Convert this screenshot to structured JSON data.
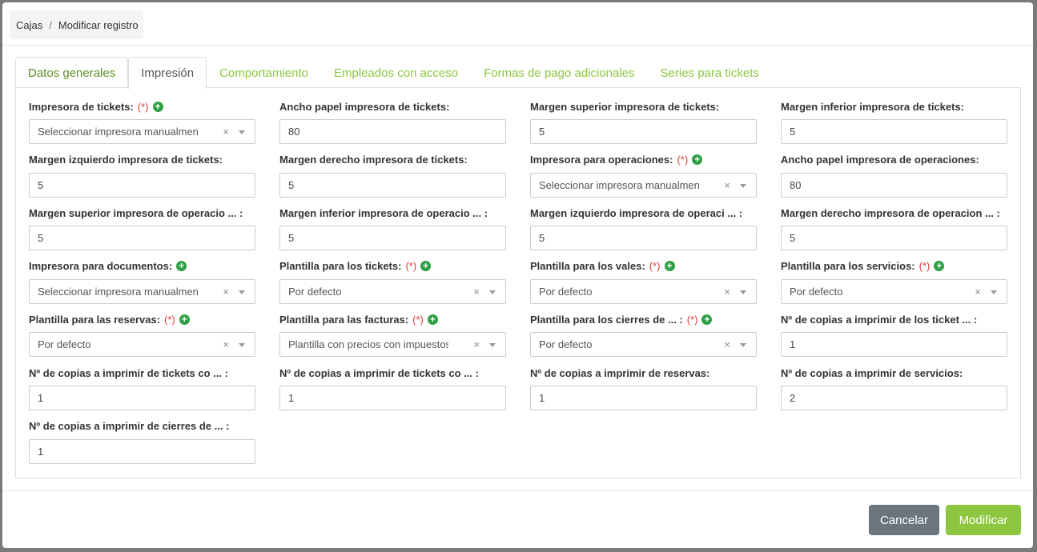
{
  "breadcrumb": [
    "Cajas",
    "Modificar registro"
  ],
  "tabs": [
    "Datos generales",
    "Impresión",
    "Comportamiento",
    "Empleados con acceso",
    "Formas de pago adicionales",
    "Series para tickets"
  ],
  "active_tab": "Impresión",
  "required_mark": "(*)",
  "fields": [
    {
      "label": "Impresora de tickets:",
      "required": true,
      "add": true,
      "type": "select",
      "value": "Seleccionar impresora manualmente"
    },
    {
      "label": "Ancho papel impresora de tickets:",
      "type": "text",
      "value": "80"
    },
    {
      "label": "Margen superior impresora de tickets:",
      "type": "text",
      "value": "5"
    },
    {
      "label": "Margen inferior impresora de tickets:",
      "type": "text",
      "value": "5"
    },
    {
      "label": "Margen izquierdo impresora de tickets:",
      "type": "text",
      "value": "5"
    },
    {
      "label": "Margen derecho impresora de tickets:",
      "type": "text",
      "value": "5"
    },
    {
      "label": "Impresora para operaciones:",
      "required": true,
      "add": true,
      "type": "select",
      "value": "Seleccionar impresora manualmente"
    },
    {
      "label": "Ancho papel impresora de operaciones:",
      "type": "text",
      "value": "80"
    },
    {
      "label": "Margen superior impresora de operacio ... :",
      "type": "text",
      "value": "5"
    },
    {
      "label": "Margen inferior impresora de operacio ... :",
      "type": "text",
      "value": "5"
    },
    {
      "label": "Margen izquierdo impresora de operaci ... :",
      "type": "text",
      "value": "5"
    },
    {
      "label": "Margen derecho impresora de operacion ... :",
      "type": "text",
      "value": "5"
    },
    {
      "label": "Impresora para documentos:",
      "add": true,
      "type": "select",
      "value": "Seleccionar impresora manualmente"
    },
    {
      "label": "Plantilla para los tickets:",
      "required": true,
      "add": true,
      "type": "select",
      "value": "Por defecto"
    },
    {
      "label": "Plantilla para los vales:",
      "required": true,
      "add": true,
      "type": "select",
      "value": "Por defecto"
    },
    {
      "label": "Plantilla para los servicios:",
      "required": true,
      "add": true,
      "type": "select",
      "value": "Por defecto"
    },
    {
      "label": "Plantilla para las reservas:",
      "required": true,
      "add": true,
      "type": "select",
      "value": "Por defecto"
    },
    {
      "label": "Plantilla para las facturas:",
      "required": true,
      "add": true,
      "type": "select",
      "value": "Plantilla con precios con impuestos"
    },
    {
      "label": "Plantilla para los cierres de ... :",
      "required": true,
      "add": true,
      "type": "select",
      "value": "Por defecto"
    },
    {
      "label": "Nº de copias a imprimir de los ticket ... :",
      "type": "text",
      "value": "1"
    },
    {
      "label": "Nº de copias a imprimir de tickets co ... :",
      "type": "text",
      "value": "1"
    },
    {
      "label": "Nº de copias a imprimir de tickets co ... :",
      "type": "text",
      "value": "1"
    },
    {
      "label": "Nº de copias a imprimir de reservas:",
      "type": "text",
      "value": "1"
    },
    {
      "label": "Nº de copias a imprimir de servicios:",
      "type": "text",
      "value": "2"
    },
    {
      "label": "Nº de copias a imprimir de cierres de ... :",
      "type": "text",
      "value": "1"
    }
  ],
  "buttons": {
    "cancel": "Cancelar",
    "submit": "Modificar"
  },
  "colors": {
    "accent": "#8dc63f",
    "cancel": "#6c757d",
    "required": "#e53935",
    "add": "#2ea043"
  }
}
